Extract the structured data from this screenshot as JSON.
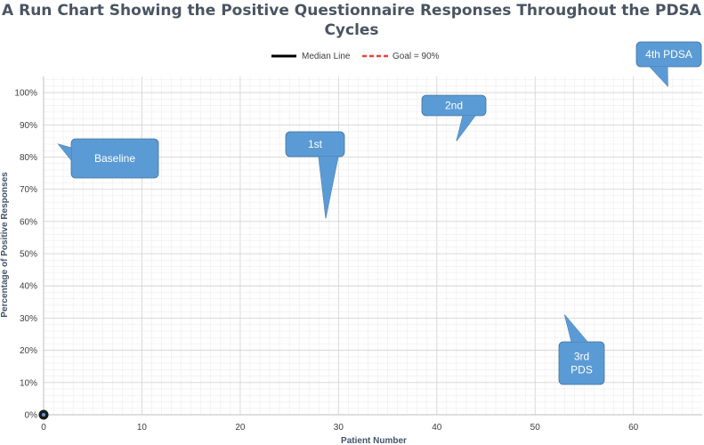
{
  "chart_data": {
    "type": "line",
    "title_lines": [
      "A Run Chart Showing the Positive Questionnaire Responses Throughout the PDSA",
      "Cycles"
    ],
    "xlabel": "Patient Number",
    "ylabel": "Percentage of Positive Responses",
    "xlim": [
      0,
      67
    ],
    "ylim": [
      0,
      1.05
    ],
    "x_ticks": [
      0,
      10,
      20,
      30,
      40,
      50,
      60
    ],
    "x_tick_labels": [
      "0",
      "10",
      "20",
      "30",
      "40",
      "50",
      "60"
    ],
    "y_ticks": [
      0,
      0.1,
      0.2,
      0.3,
      0.4,
      0.5,
      0.6,
      0.7,
      0.8,
      0.9,
      1.0
    ],
    "y_tick_labels": [
      "0%",
      "10%",
      "20%",
      "30%",
      "40%",
      "50%",
      "60%",
      "70%",
      "80%",
      "90%",
      "100%"
    ],
    "grid": "on",
    "legend_placement": "top-center",
    "legend": [
      {
        "label": "Median Line",
        "color": "#000000",
        "style": "solid"
      },
      {
        "label": "Goal = 90%",
        "color": "#e8413c",
        "style": "dashed"
      }
    ],
    "series": [
      {
        "name": "Median Line",
        "x": [],
        "y": []
      },
      {
        "name": "Goal = 90%",
        "x": [],
        "y": []
      }
    ],
    "points": [
      {
        "x": 0,
        "y": 0
      }
    ],
    "callout_color": "#5b9bd5",
    "annotations": [
      {
        "lines": [
          "Baseline"
        ],
        "target": {
          "x": 1.5,
          "y": 0.84
        }
      },
      {
        "lines": [
          "1st"
        ],
        "target": {
          "x": 28.7,
          "y": 0.61
        }
      },
      {
        "lines": [
          "2nd"
        ],
        "target": {
          "x": 42,
          "y": 0.85
        }
      },
      {
        "lines": [
          "3rd",
          "PDS"
        ],
        "target": {
          "x": 53,
          "y": 0.31
        }
      },
      {
        "lines": [
          "4th PDSA"
        ],
        "target": {
          "x": 63.5,
          "y": 1.02
        }
      }
    ]
  }
}
